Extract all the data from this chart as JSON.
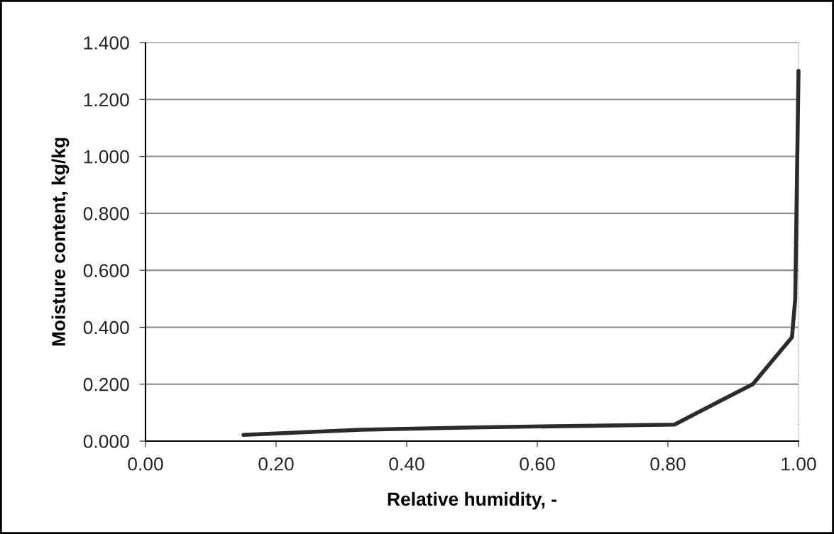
{
  "chart_data": {
    "type": "line",
    "xlabel": "Relative humidity, -",
    "ylabel": "Moisture content, kg/kg",
    "x": [
      0.15,
      0.33,
      0.5,
      0.81,
      0.93,
      0.99,
      0.995,
      1.0
    ],
    "series": [
      {
        "color": "#2b2b2b",
        "values": [
          0.022,
          0.04,
          0.048,
          0.058,
          0.2,
          0.365,
          0.5,
          1.3
        ]
      }
    ],
    "xlim": [
      0,
      1
    ],
    "ylim": [
      0,
      1.4
    ],
    "xticks": [
      {
        "value": 0,
        "label": "0.00"
      },
      {
        "value": 0.2,
        "label": "0.20"
      },
      {
        "value": 0.4,
        "label": "0.40"
      },
      {
        "value": 0.6,
        "label": "0.60"
      },
      {
        "value": 0.8,
        "label": "0.80"
      },
      {
        "value": 1,
        "label": "1.00"
      }
    ],
    "yticks": [
      {
        "value": 0,
        "label": "0.000"
      },
      {
        "value": 0.2,
        "label": "0.200"
      },
      {
        "value": 0.4,
        "label": "0.400"
      },
      {
        "value": 0.6,
        "label": "0.600"
      },
      {
        "value": 0.8,
        "label": "0.800"
      },
      {
        "value": 1.0,
        "label": "1.000"
      },
      {
        "value": 1.2,
        "label": "1.200"
      },
      {
        "value": 1.4,
        "label": "1.400"
      }
    ],
    "grid": "y",
    "marker": "none",
    "line_style": "solid"
  }
}
